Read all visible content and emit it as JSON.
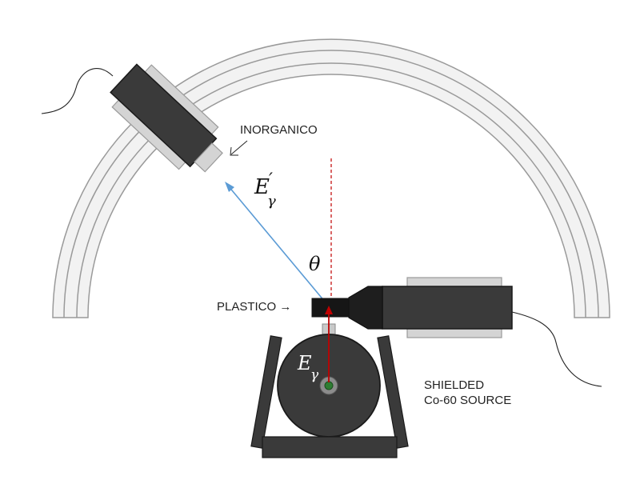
{
  "labels": {
    "inorganic": "INORGANICO",
    "plastic": "PLASTICO →",
    "source_line1": "SHIELDED",
    "source_line2": "Co-60 SOURCE"
  },
  "math": {
    "scattered_energy_base": "E",
    "scattered_energy_prime": "′",
    "scattered_energy_sub": "γ",
    "angle": "θ",
    "incident_energy_base": "E",
    "incident_energy_sub": "γ"
  },
  "colors": {
    "arc_fill": "#f2f2f2",
    "arc_stroke": "#9a9a9a",
    "detector_body": "#3a3a3a",
    "detector_dark": "#1a1a1a",
    "sleeve": "#d4d4d4",
    "incident_ray": "#c00000",
    "scattered_ray": "#5b9bd5",
    "source_core": "#2e7d32"
  }
}
